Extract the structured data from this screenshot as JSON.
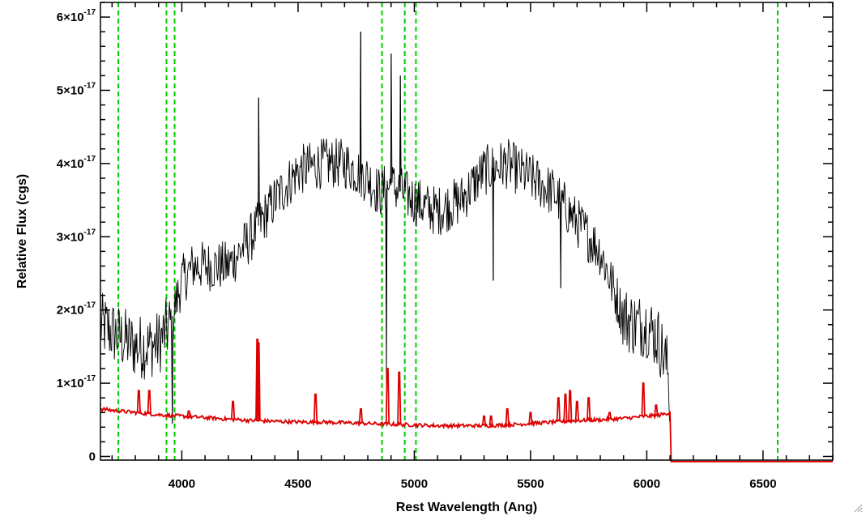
{
  "chart_data": {
    "type": "line",
    "title": "",
    "xlabel": "Rest Wavelength (Ang)",
    "ylabel": "Relative Flux (cgs)",
    "xlim": [
      3650,
      6800
    ],
    "ylim": [
      -0.05,
      6.2
    ],
    "y_scale_exponent": -17,
    "x_ticks": [
      4000,
      4500,
      5000,
      5500,
      6000,
      6500
    ],
    "x_tick_labels": [
      "4000",
      "4500",
      "5000",
      "5500",
      "6000",
      "6500"
    ],
    "y_ticks": [
      0,
      1,
      2,
      3,
      4,
      5,
      6
    ],
    "y_tick_labels": [
      {
        "mantissa": "0",
        "exp": ""
      },
      {
        "mantissa": "1×10",
        "exp": "-17"
      },
      {
        "mantissa": "2×10",
        "exp": "-17"
      },
      {
        "mantissa": "3×10",
        "exp": "-17"
      },
      {
        "mantissa": "4×10",
        "exp": "-17"
      },
      {
        "mantissa": "5×10",
        "exp": "-17"
      },
      {
        "mantissa": "6×10",
        "exp": "-17"
      }
    ],
    "grid": false,
    "series": [
      {
        "role": "spectrum",
        "color": "#000000",
        "noise_amplitude": 0.35,
        "x": [
          3650,
          3700,
          3750,
          3800,
          3850,
          3900,
          3950,
          4000,
          4050,
          4100,
          4200,
          4300,
          4400,
          4500,
          4600,
          4700,
          4800,
          4850,
          4900,
          4950,
          5000,
          5050,
          5100,
          5200,
          5300,
          5400,
          5500,
          5600,
          5700,
          5800,
          5900,
          5950,
          6000,
          6050,
          6090,
          6100
        ],
        "y": [
          1.8,
          1.7,
          1.6,
          1.5,
          1.5,
          1.55,
          1.8,
          2.4,
          2.6,
          2.6,
          2.6,
          3.0,
          3.5,
          3.9,
          4.0,
          4.0,
          3.8,
          3.6,
          3.7,
          3.6,
          3.5,
          3.4,
          3.35,
          3.5,
          3.9,
          4.0,
          3.8,
          3.6,
          3.2,
          2.8,
          1.9,
          1.8,
          1.8,
          1.6,
          1.2,
          0.7
        ],
        "features": [
          {
            "x": 4330,
            "y": 4.9
          },
          {
            "x": 4770,
            "y": 5.8
          },
          {
            "x": 4880,
            "y": 1.0
          },
          {
            "x": 4900,
            "y": 5.5
          },
          {
            "x": 4940,
            "y": 5.2
          },
          {
            "x": 5340,
            "y": 2.4
          },
          {
            "x": 5630,
            "y": 2.3
          },
          {
            "x": 3960,
            "y": 0.45
          }
        ]
      },
      {
        "role": "error-spectrum",
        "color": "#dd0000",
        "x": [
          3650,
          3700,
          3800,
          3900,
          4000,
          4100,
          4200,
          4300,
          4400,
          4500,
          4600,
          4700,
          4800,
          4900,
          5000,
          5100,
          5200,
          5300,
          5400,
          5500,
          5600,
          5700,
          5800,
          5900,
          6000,
          6050,
          6100,
          6105,
          6800
        ],
        "y": [
          0.65,
          0.63,
          0.6,
          0.57,
          0.55,
          0.53,
          0.51,
          0.49,
          0.48,
          0.47,
          0.47,
          0.46,
          0.45,
          0.44,
          0.43,
          0.42,
          0.42,
          0.42,
          0.43,
          0.45,
          0.47,
          0.49,
          0.5,
          0.52,
          0.55,
          0.56,
          0.6,
          -0.07,
          -0.07
        ],
        "peaks": [
          {
            "x": 3815,
            "y": 0.9
          },
          {
            "x": 3860,
            "y": 0.9
          },
          {
            "x": 4030,
            "y": 0.62
          },
          {
            "x": 4220,
            "y": 0.75
          },
          {
            "x": 4325,
            "y": 1.6
          },
          {
            "x": 4330,
            "y": 1.55
          },
          {
            "x": 4575,
            "y": 0.85
          },
          {
            "x": 4770,
            "y": 0.65
          },
          {
            "x": 4885,
            "y": 1.2
          },
          {
            "x": 4935,
            "y": 1.15
          },
          {
            "x": 5300,
            "y": 0.55
          },
          {
            "x": 5330,
            "y": 0.55
          },
          {
            "x": 5400,
            "y": 0.65
          },
          {
            "x": 5500,
            "y": 0.6
          },
          {
            "x": 5620,
            "y": 0.8
          },
          {
            "x": 5650,
            "y": 0.85
          },
          {
            "x": 5670,
            "y": 0.9
          },
          {
            "x": 5700,
            "y": 0.75
          },
          {
            "x": 5750,
            "y": 0.8
          },
          {
            "x": 5840,
            "y": 0.6
          },
          {
            "x": 5985,
            "y": 1.0
          },
          {
            "x": 6040,
            "y": 0.7
          }
        ]
      }
    ],
    "vertical_markers": {
      "color": "#00cc00",
      "style": "dashed",
      "x": [
        3727,
        3934,
        3969,
        4861,
        4959,
        5007,
        6563
      ]
    }
  }
}
